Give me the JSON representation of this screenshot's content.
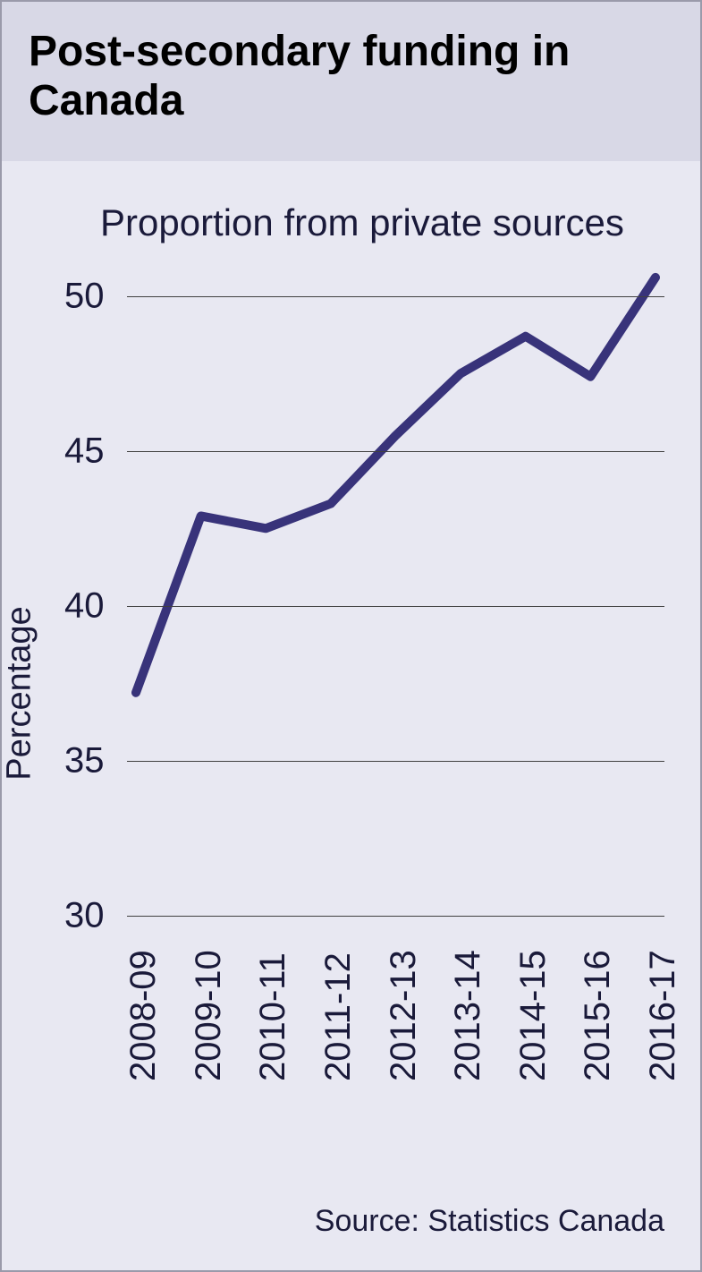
{
  "header": {
    "title": "Post-secondary funding in Canada"
  },
  "chart": {
    "type": "line",
    "subtitle": "Proportion from private sources",
    "y_axis_label": "Percentage",
    "ylim": [
      30,
      50.8
    ],
    "ytick_step": 5,
    "yticks": [
      30,
      35,
      40,
      45,
      50
    ],
    "categories": [
      "2008-09",
      "2009-10",
      "2010-11",
      "2011-12",
      "2012-13",
      "2013-14",
      "2014-15",
      "2015-16",
      "2016-17"
    ],
    "values": [
      37.2,
      42.9,
      42.5,
      43.3,
      45.5,
      47.5,
      48.7,
      47.4,
      50.6
    ],
    "line_color": "#38337a",
    "line_width": 10,
    "grid_color": "#404040",
    "background_color": "#e8e8f2",
    "header_background": "#d8d8e6",
    "title_fontsize": 48,
    "subtitle_fontsize": 42,
    "tick_fontsize": 40,
    "label_fontsize": 38
  },
  "source": {
    "text": "Source: Statistics Canada"
  }
}
